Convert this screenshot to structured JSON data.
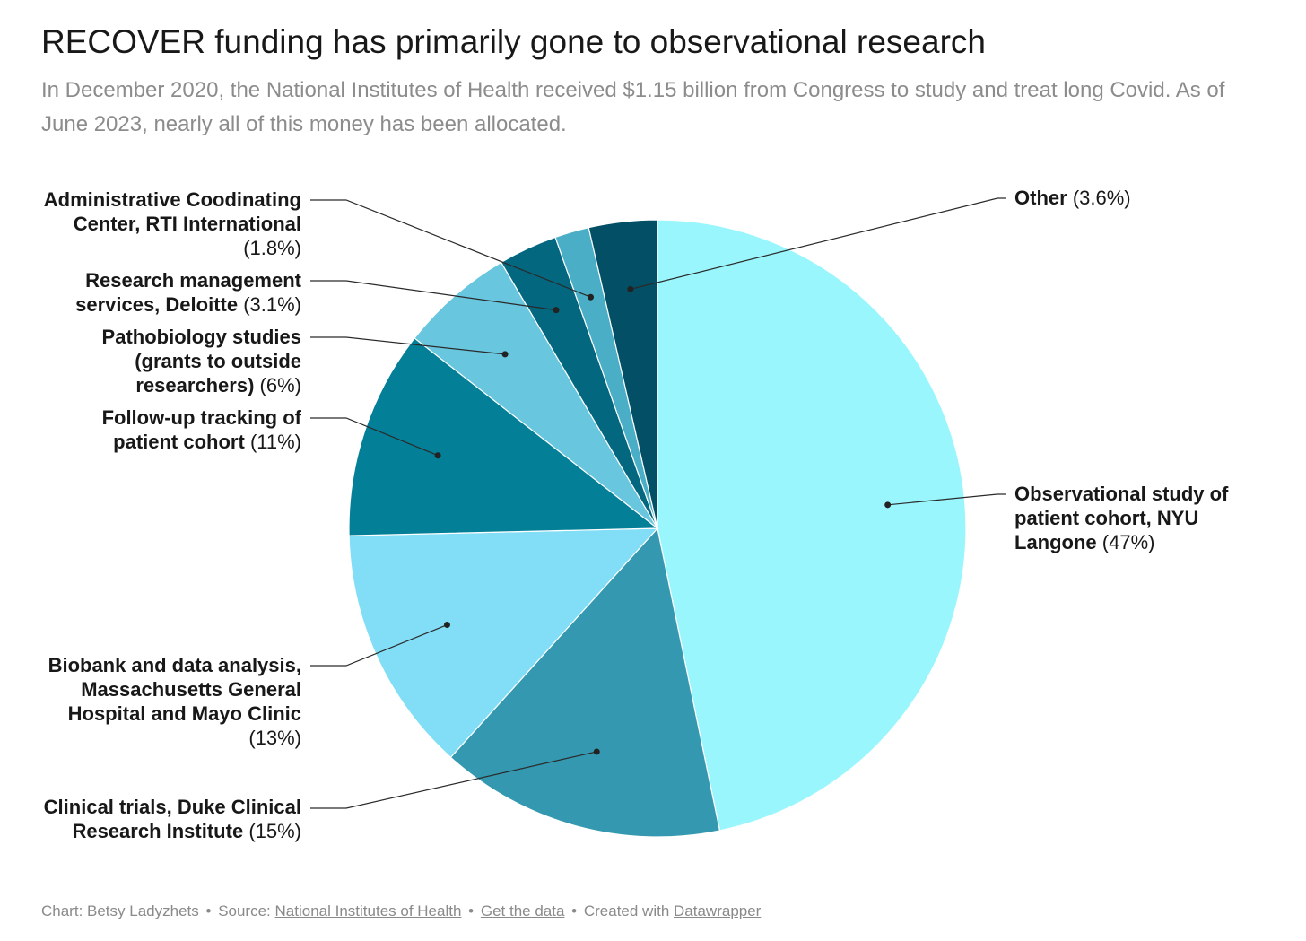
{
  "header": {
    "title": "RECOVER funding has primarily gone to observational research",
    "subtitle": "In December 2020, the National Institutes of Health received $1.15 billion from Congress to study and treat long Covid. As of June 2023, nearly all of this money has been allocated."
  },
  "footer": {
    "chart_prefix": "Chart: Betsy Ladyzhets",
    "sep": "•",
    "source_prefix": "Source:",
    "source_link": "National Institutes of Health",
    "data_link": "Get the data",
    "created_prefix": "Created with",
    "created_link": "Datawrapper"
  },
  "chart_data": {
    "type": "pie",
    "title": "RECOVER funding has primarily gone to observational research",
    "subtitle": "In December 2020, the National Institutes of Health received $1.15 billion from Congress to study and treat long Covid. As of June 2023, nearly all of this money has been allocated.",
    "slices": [
      {
        "name": "Observational study of patient cohort, NYU Langone",
        "pct_label": "(47%)",
        "value": 47,
        "color": "#9af6fd"
      },
      {
        "name": "Clinical trials, Duke Clinical Research Institute",
        "pct_label": "(15%)",
        "value": 15,
        "color": "#3498b0"
      },
      {
        "name": "Biobank and data analysis, Massachusetts General Hospital and Mayo Clinic",
        "pct_label": "(13%)",
        "value": 13,
        "color": "#81def6"
      },
      {
        "name": "Follow-up tracking of patient cohort",
        "pct_label": "(11%)",
        "value": 11,
        "color": "#047f98"
      },
      {
        "name": "Pathobiology studies (grants to outside researchers)",
        "pct_label": "(6%)",
        "value": 6,
        "color": "#68c6de"
      },
      {
        "name": "Research management services, Deloitte",
        "pct_label": "(3.1%)",
        "value": 3.1,
        "color": "#03677f"
      },
      {
        "name": "Administrative Coodinating Center, RTI International",
        "pct_label": "(1.8%)",
        "value": 1.8,
        "color": "#4aaec6"
      },
      {
        "name": "Other",
        "pct_label": "(3.6%)",
        "value": 3.6,
        "color": "#034f66"
      }
    ]
  }
}
